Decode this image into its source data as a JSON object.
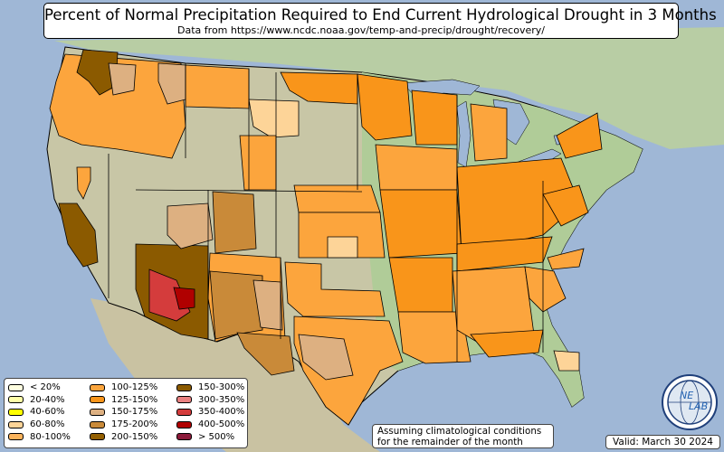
{
  "title": "Percent of Normal Precipitation Required to End Current Hydrological Drought in 3 Months",
  "subtitle": "Data from https://www.ncdc.noaa.gov/temp-and-precip/drought/recovery/",
  "colors": {
    "water": "#9fb7d6",
    "land_west": "#cfc6a8",
    "land_east": "#a9c795",
    "state_border": "#000000",
    "c_lt20": "#ffffe0",
    "c_20_40": "#ffffa8",
    "c_40_60": "#ffff00",
    "c_60_80": "#fdd498",
    "c_80_100": "#fbb35c",
    "c_100_125": "#fca53d",
    "c_125_150": "#f9951a",
    "c_150_175": "#ddb081",
    "c_175_200": "#c98a39",
    "c_200_150": "#935f00",
    "c_150_300": "#8b5a00",
    "c_300_350": "#e98080",
    "c_350_400": "#d43c3c",
    "c_400_500": "#b00000",
    "c_gt500": "#8b1a3a"
  },
  "legend": {
    "col1": [
      {
        "label": "< 20%",
        "color": "#ffffe0"
      },
      {
        "label": "20-40%",
        "color": "#ffffa8"
      },
      {
        "label": "40-60%",
        "color": "#ffff00"
      },
      {
        "label": "60-80%",
        "color": "#fdd498"
      },
      {
        "label": "80-100%",
        "color": "#fbb35c"
      }
    ],
    "col2": [
      {
        "label": "100-125%",
        "color": "#fca53d"
      },
      {
        "label": "125-150%",
        "color": "#f9951a"
      },
      {
        "label": "150-175%",
        "color": "#ddb081"
      },
      {
        "label": "175-200%",
        "color": "#c98a39"
      },
      {
        "label": "200-150%",
        "color": "#935f00"
      }
    ],
    "col3": [
      {
        "label": "150-300%",
        "color": "#8b5a00"
      },
      {
        "label": "300-350%",
        "color": "#e98080"
      },
      {
        "label": "350-400%",
        "color": "#d43c3c"
      },
      {
        "label": "400-500%",
        "color": "#b00000"
      },
      {
        "label": "> 500%",
        "color": "#8b1a3a"
      }
    ]
  },
  "note": {
    "line1": "Assuming climatological conditions",
    "line2": "for the remainder of the month"
  },
  "valid": "Valid: March 30 2024",
  "logo": {
    "icon": "ne-lab-globe-icon",
    "text_ne": "NE",
    "text_lab": "LAB"
  }
}
